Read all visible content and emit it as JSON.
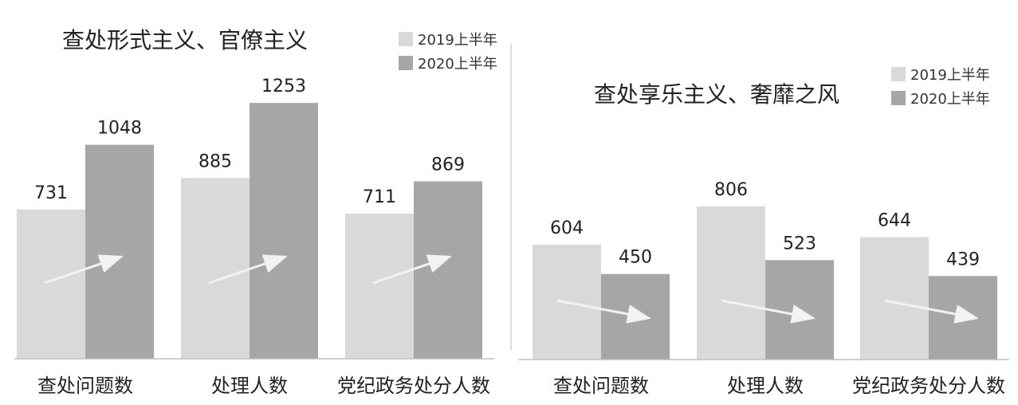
{
  "colors": {
    "series_2019": "#d9d9d9",
    "series_2020": "#a6a6a6",
    "arrow": "#f2f2f2",
    "axis": "#bfbfbf",
    "divider": "#d0d0d0"
  },
  "chart_data": [
    {
      "type": "bar",
      "title": "查处形式主义、官僚主义",
      "categories": [
        "查处问题数",
        "处理人数",
        "党纪政务处分人数"
      ],
      "series": [
        {
          "name": "2019上半年",
          "values": [
            731,
            885,
            711
          ]
        },
        {
          "name": "2020上半年",
          "values": [
            1048,
            1253,
            869
          ]
        }
      ],
      "trend": "up",
      "legend_position": "top-right",
      "grid": false
    },
    {
      "type": "bar",
      "title": "查处享乐主义、奢靡之风",
      "categories": [
        "查处问题数",
        "处理人数",
        "党纪政务处分人数"
      ],
      "series": [
        {
          "name": "2019上半年",
          "values": [
            604,
            806,
            644
          ]
        },
        {
          "name": "2020上半年",
          "values": [
            450,
            523,
            439
          ]
        }
      ],
      "trend": "down",
      "legend_position": "top-right",
      "grid": false
    }
  ]
}
